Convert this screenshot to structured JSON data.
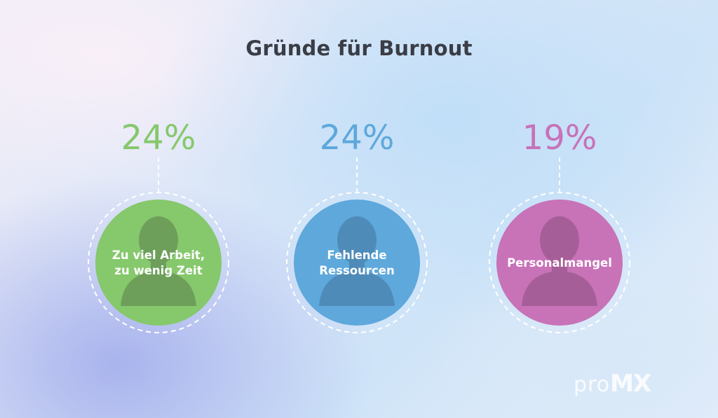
{
  "chart_data": {
    "type": "pictorial",
    "title": "Gründe für Burnout",
    "categories": [
      "Zu viel Arbeit, zu wenig Zeit",
      "Fehlende Ressourcen",
      "Personalmangel"
    ],
    "label_lines": [
      [
        "Zu viel Arbeit,",
        "zu wenig Zeit"
      ],
      [
        "Fehlende",
        "Ressourcen"
      ],
      [
        "Personalmangel"
      ]
    ],
    "values": [
      24,
      24,
      19
    ],
    "value_labels": [
      "24%",
      "24%",
      "19%"
    ],
    "unit": "%",
    "colors": [
      "#86c86c",
      "#5ea8db",
      "#c872b8"
    ],
    "silhouette_colors": [
      "#6d9f5a",
      "#4e8bb8",
      "#a65e98"
    ],
    "icon": "person-silhouette-icon"
  },
  "brand": {
    "logo_text_pro": "pro",
    "logo_text_mx": "MX"
  }
}
